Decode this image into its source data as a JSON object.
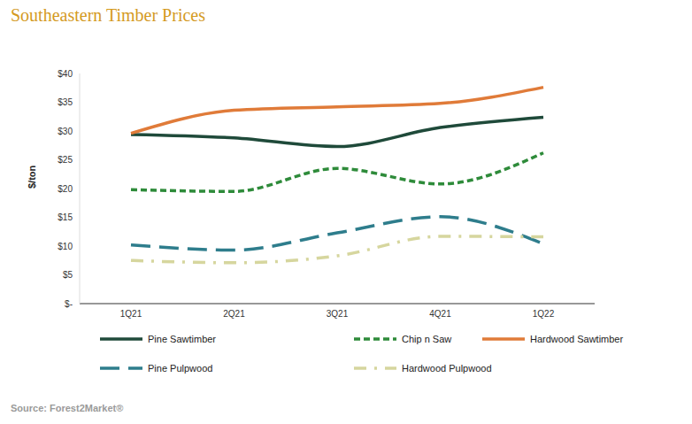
{
  "chart_data": {
    "type": "line",
    "title": "Southeastern Timber Prices",
    "y_label": "$/ton",
    "source": "Source: Forest2Market®",
    "categories": [
      "1Q21",
      "2Q21",
      "3Q21",
      "4Q21",
      "1Q22"
    ],
    "series": [
      {
        "name": "Pine Sawtimber",
        "color": "#1f4a3a",
        "line_style": "solid",
        "values": [
          29.4,
          28.8,
          27.3,
          30.6,
          32.4
        ]
      },
      {
        "name": "Chip n Saw",
        "color": "#2e8b3a",
        "line_style": "dashed",
        "values": [
          19.8,
          19.5,
          23.5,
          20.8,
          26.2
        ]
      },
      {
        "name": "Hardwood Sawtimber",
        "color": "#e07b39",
        "line_style": "solid",
        "values": [
          29.6,
          33.6,
          34.2,
          34.8,
          37.6
        ]
      },
      {
        "name": "Pine Pulpwood",
        "color": "#2e7d8c",
        "line_style": "long_dash",
        "values": [
          10.2,
          9.3,
          12.3,
          15.1,
          10.4
        ]
      },
      {
        "name": "Hardwood Pulpwood",
        "color": "#d6d69e",
        "line_style": "dash_dot",
        "values": [
          7.5,
          7.1,
          8.3,
          11.7,
          11.6
        ]
      }
    ],
    "ylim": [
      0,
      40
    ],
    "yticks": [
      {
        "value": 0,
        "label": "$-"
      },
      {
        "value": 5,
        "label": "$5"
      },
      {
        "value": 10,
        "label": "$10"
      },
      {
        "value": 15,
        "label": "$15"
      },
      {
        "value": 20,
        "label": "$20"
      },
      {
        "value": 25,
        "label": "$25"
      },
      {
        "value": 30,
        "label": "$30"
      },
      {
        "value": 35,
        "label": "$35"
      },
      {
        "value": 40,
        "label": "$40"
      }
    ],
    "grid": false,
    "legend": "bottom"
  }
}
